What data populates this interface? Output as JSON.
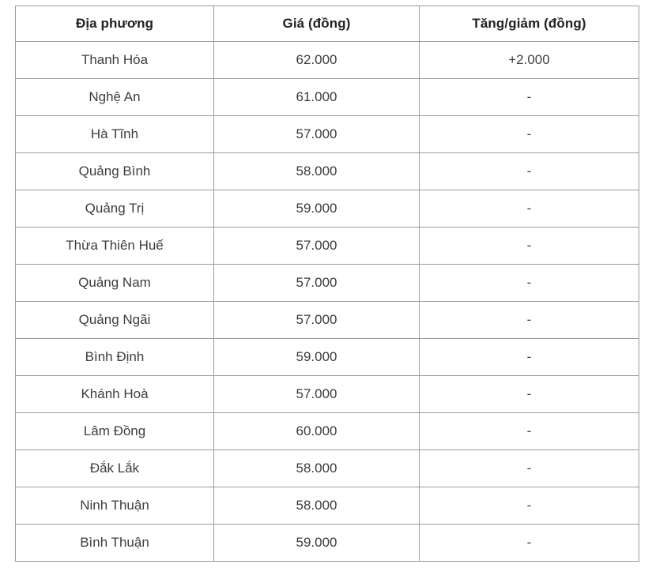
{
  "colors": {
    "background": "#ffffff",
    "border": "#9b9b9b",
    "header_text": "#222222",
    "body_text": "#3d3d3d"
  },
  "chart_data": {
    "type": "table",
    "title": "",
    "columns": [
      "Địa phương",
      "Giá (đồng)",
      "Tăng/giảm (đồng)"
    ],
    "rows": [
      [
        "Thanh Hóa",
        "62.000",
        "+2.000"
      ],
      [
        "Nghệ An",
        "61.000",
        "-"
      ],
      [
        "Hà Tĩnh",
        "57.000",
        "-"
      ],
      [
        "Quảng Bình",
        "58.000",
        "-"
      ],
      [
        "Quảng Trị",
        "59.000",
        "-"
      ],
      [
        "Thừa Thiên Huế",
        "57.000",
        "-"
      ],
      [
        "Quảng Nam",
        "57.000",
        "-"
      ],
      [
        "Quảng Ngãi",
        "57.000",
        "-"
      ],
      [
        "Bình Định",
        "59.000",
        "-"
      ],
      [
        "Khánh Hoà",
        "57.000",
        "-"
      ],
      [
        "Lâm Đồng",
        "60.000",
        "-"
      ],
      [
        "Đắk Lắk",
        "58.000",
        "-"
      ],
      [
        "Ninh Thuận",
        "58.000",
        "-"
      ],
      [
        "Bình Thuận",
        "59.000",
        "-"
      ]
    ]
  }
}
